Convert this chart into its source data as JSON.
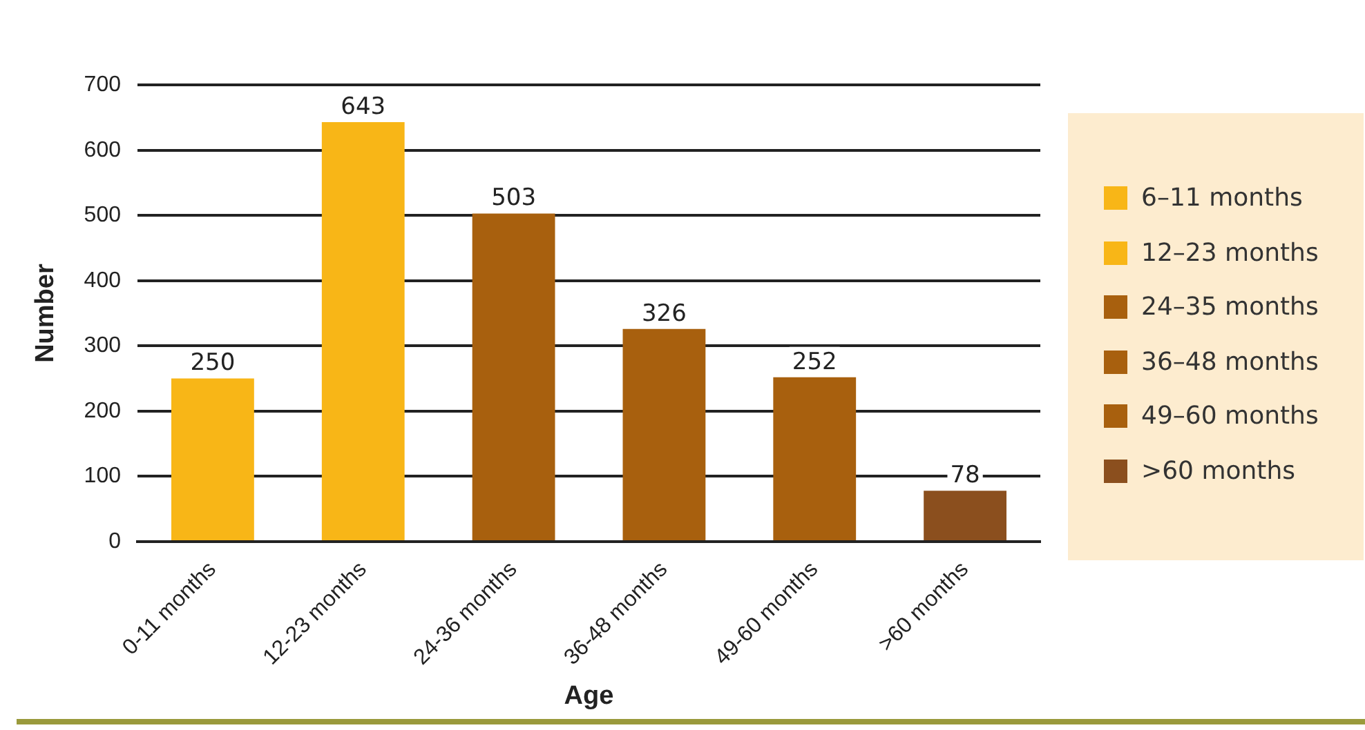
{
  "chart_data": {
    "type": "bar",
    "xlabel": "Age",
    "ylabel": "Number",
    "categories": [
      "0-11 months",
      "12-23 months",
      "24-36 months",
      "36-48 months",
      "49-60 months",
      ">60 months"
    ],
    "series": [
      {
        "name": "6–11 months",
        "color": "#f8b617",
        "values": [
          250,
          null,
          null,
          null,
          null,
          null
        ]
      },
      {
        "name": "12–23 months",
        "color": "#f8b617",
        "values": [
          null,
          643,
          null,
          null,
          null,
          null
        ]
      },
      {
        "name": "24–35 months",
        "color": "#a8600e",
        "values": [
          null,
          null,
          503,
          null,
          null,
          null
        ]
      },
      {
        "name": "36–48 months",
        "color": "#a8600e",
        "values": [
          null,
          null,
          null,
          326,
          null,
          null
        ]
      },
      {
        "name": "49–60 months",
        "color": "#a8600e",
        "values": [
          null,
          null,
          null,
          null,
          252,
          null
        ]
      },
      {
        "name": ">60 months",
        "color": "#8b4f1e",
        "values": [
          null,
          null,
          null,
          null,
          null,
          78
        ]
      }
    ],
    "ylim": [
      0,
      700
    ],
    "yticks": [
      0,
      100,
      200,
      300,
      400,
      500,
      600,
      700
    ],
    "grid": "y",
    "legend": "right",
    "data_labels": true
  }
}
